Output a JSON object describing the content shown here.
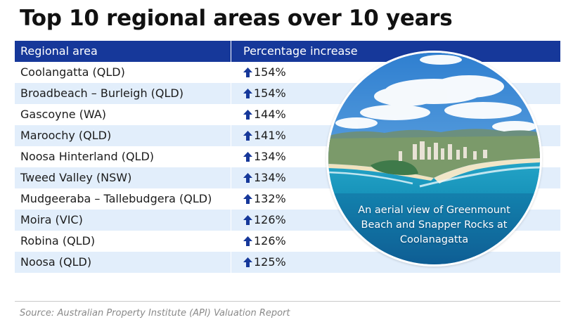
{
  "title": "Top 10 regional areas over 10 years",
  "source": "Source: Australian Property Institute (API) Valuation Report",
  "colors": {
    "header": "#16389a",
    "alt_row": "#e2eefb",
    "arrow": "#16389a"
  },
  "image": {
    "caption": [
      "An aerial view of Greenmount",
      "Beach and Snapper Rocks at",
      "Coolanagatta"
    ]
  },
  "chart_data": {
    "type": "table",
    "columns": [
      "Regional area",
      "Percentage increase"
    ],
    "rows": [
      {
        "area": "Coolangatta (QLD)",
        "increase": "154%"
      },
      {
        "area": "Broadbeach – Burleigh (QLD)",
        "increase": "154%"
      },
      {
        "area": "Gascoyne (WA)",
        "increase": "144%"
      },
      {
        "area": "Maroochy (QLD)",
        "increase": "141%"
      },
      {
        "area": "Noosa Hinterland (QLD)",
        "increase": "134%"
      },
      {
        "area": "Tweed Valley (NSW)",
        "increase": "134%"
      },
      {
        "area": "Mudgeeraba – Tallebudgera (QLD)",
        "increase": "132%"
      },
      {
        "area": "Moira (VIC)",
        "increase": "126%"
      },
      {
        "area": "Robina (QLD)",
        "increase": "126%"
      },
      {
        "area": "Noosa (QLD)",
        "increase": "125%"
      }
    ],
    "indicator_icon": "up-arrow-icon"
  }
}
